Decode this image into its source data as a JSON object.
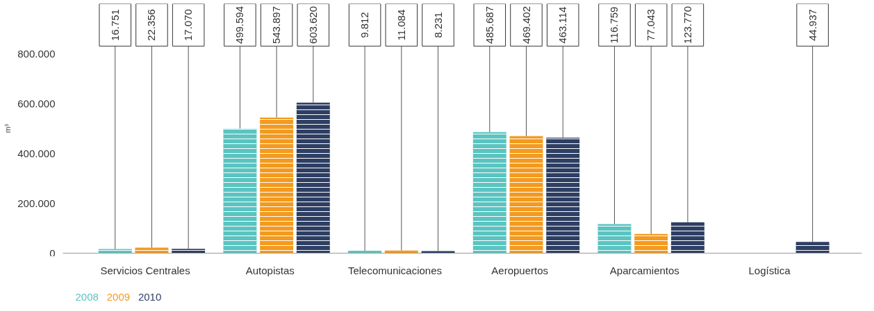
{
  "chart_data": {
    "type": "bar",
    "ylabel": "m³",
    "categories": [
      "Servicios Centrales",
      "Autopistas",
      "Telecomunicaciones",
      "Aeropuertos",
      "Aparcamientos",
      "Logística"
    ],
    "series": [
      {
        "name": "2008",
        "color": "#5bc4c1",
        "values": [
          16751,
          499594,
          9812,
          485687,
          116759,
          null
        ],
        "value_labels": [
          "16.751",
          "499.594",
          "9.812",
          "485.687",
          "116.759",
          null
        ]
      },
      {
        "name": "2009",
        "color": "#f39a1f",
        "values": [
          22356,
          543897,
          11084,
          469402,
          77043,
          null
        ],
        "value_labels": [
          "22.356",
          "543.897",
          "11.084",
          "469.402",
          "77.043",
          null
        ]
      },
      {
        "name": "2010",
        "color": "#2e3f63",
        "values": [
          17070,
          603620,
          8231,
          463114,
          123770,
          44937
        ],
        "value_labels": [
          "17.070",
          "603.620",
          "8.231",
          "463.114",
          "123.770",
          "44.937"
        ]
      }
    ],
    "ylim": [
      0,
      1000000
    ],
    "yticks": [
      {
        "value": 0,
        "label": "0"
      },
      {
        "value": 200000,
        "label": "200.000"
      },
      {
        "value": 400000,
        "label": "400.000"
      },
      {
        "value": 600000,
        "label": "600.000"
      },
      {
        "value": 800000,
        "label": "800.000"
      }
    ],
    "grid": false
  }
}
